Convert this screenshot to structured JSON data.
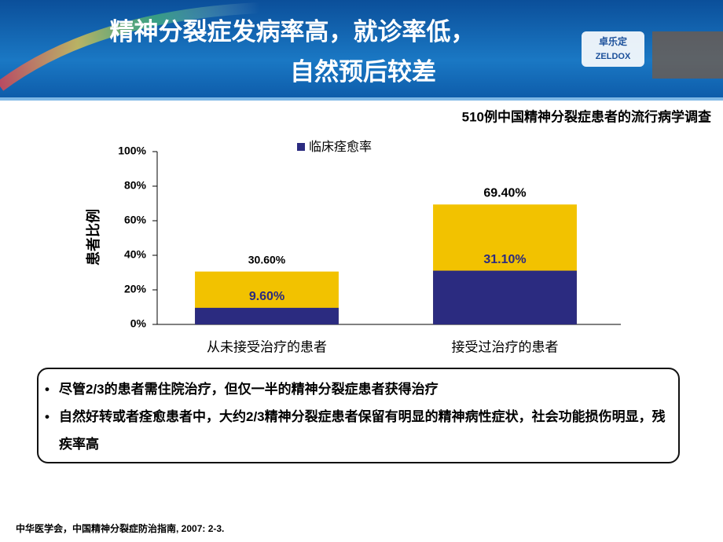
{
  "header": {
    "title_lines": [
      "精神分裂症发病率高，就诊率低，",
      "自然预后较差"
    ],
    "logo_cn": "卓乐定",
    "logo_en": "ZELDOX"
  },
  "chart_data": {
    "type": "bar",
    "overlap": true,
    "title": "510例中国精神分裂症患者的流行病学调查",
    "y_label": "患者比例",
    "categories": [
      "从未接受治疗的患者",
      "接受过治疗的患者"
    ],
    "series": [
      {
        "color": "#f2c200",
        "values": [
          30.6,
          69.4
        ],
        "value_labels": [
          "30.60%",
          "69.40%"
        ]
      },
      {
        "name": "临床痊愈率",
        "color": "#2b2b80",
        "values": [
          9.6,
          31.1
        ],
        "value_labels": [
          "9.60%",
          "31.10%"
        ]
      }
    ],
    "ylim": [
      0,
      100
    ],
    "yticks": [
      {
        "value": 0,
        "label": "0%"
      },
      {
        "value": 20,
        "label": "20%"
      },
      {
        "value": 40,
        "label": "40%"
      },
      {
        "value": 60,
        "label": "60%"
      },
      {
        "value": 80,
        "label": "80%"
      },
      {
        "value": 100,
        "label": "100%"
      }
    ],
    "legend": "top"
  },
  "bullets": [
    "尽管2/3的患者需住院治疗，但仅一半的精神分裂症患者获得治疗",
    "自然好转或者痊愈患者中，大约2/3精神分裂症患者保留有明显的精神病性症状，社会功能损伤明显，残疾率高"
  ],
  "reference": "中华医学会，中国精神分裂症防治指南, 2007: 2-3."
}
